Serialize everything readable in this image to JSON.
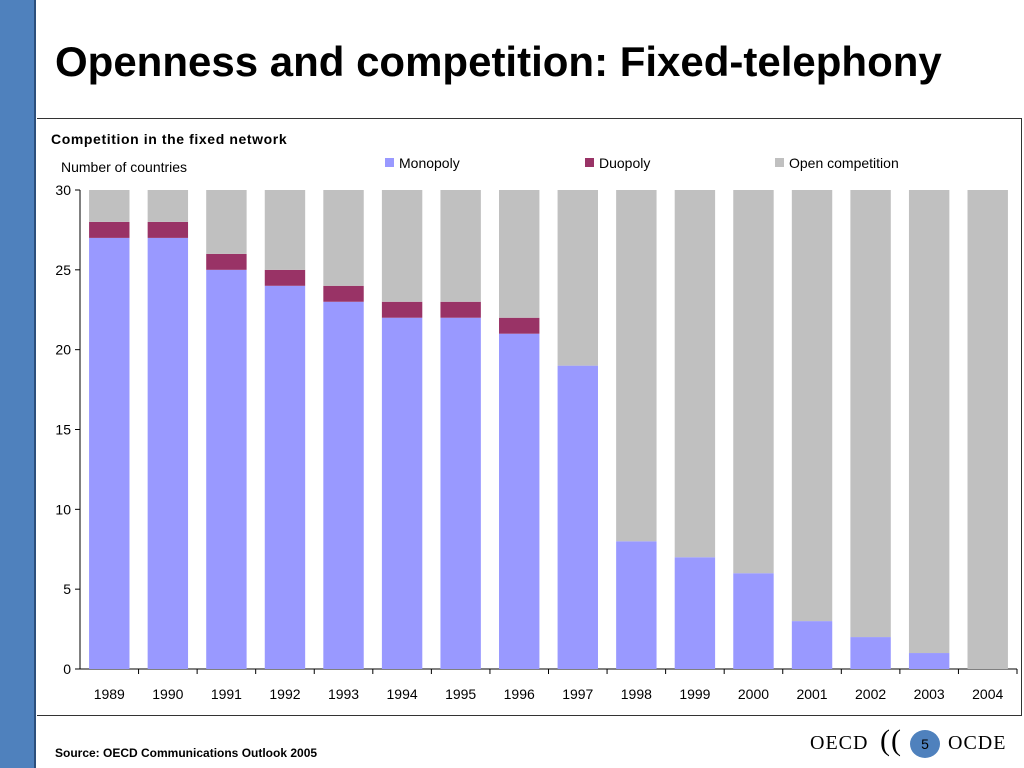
{
  "slide": {
    "title": "Openness and competition: Fixed-telephony",
    "source": "Source: OECD Communications Outlook 2005",
    "page_number": "5",
    "logo_left": "OECD",
    "logo_right": "OCDE",
    "logo_symbol": "(("
  },
  "chart_data": {
    "type": "bar",
    "stacked": true,
    "title": "Competition in the fixed network",
    "ylabel": "Number of countries",
    "xlabel": "",
    "categories": [
      "1989",
      "1990",
      "1991",
      "1992",
      "1993",
      "1994",
      "1995",
      "1996",
      "1997",
      "1998",
      "1999",
      "2000",
      "2001",
      "2002",
      "2003",
      "2004"
    ],
    "ylim": [
      0,
      30
    ],
    "yticks": [
      0,
      5,
      10,
      15,
      20,
      25,
      30
    ],
    "grid": false,
    "legend_position": "top",
    "series": [
      {
        "name": "Monopoly",
        "color": "#9999ff",
        "values": [
          27,
          27,
          25,
          24,
          23,
          22,
          22,
          21,
          19,
          8,
          7,
          6,
          3,
          2,
          1,
          0
        ]
      },
      {
        "name": "Duopoly",
        "color": "#993366",
        "values": [
          1,
          1,
          1,
          1,
          1,
          1,
          1,
          1,
          0,
          0,
          0,
          0,
          0,
          0,
          0,
          0
        ]
      },
      {
        "name": "Open competition",
        "color": "#c0c0c0",
        "values": [
          2,
          2,
          4,
          5,
          6,
          7,
          7,
          8,
          11,
          22,
          23,
          24,
          27,
          28,
          29,
          30
        ]
      }
    ]
  }
}
